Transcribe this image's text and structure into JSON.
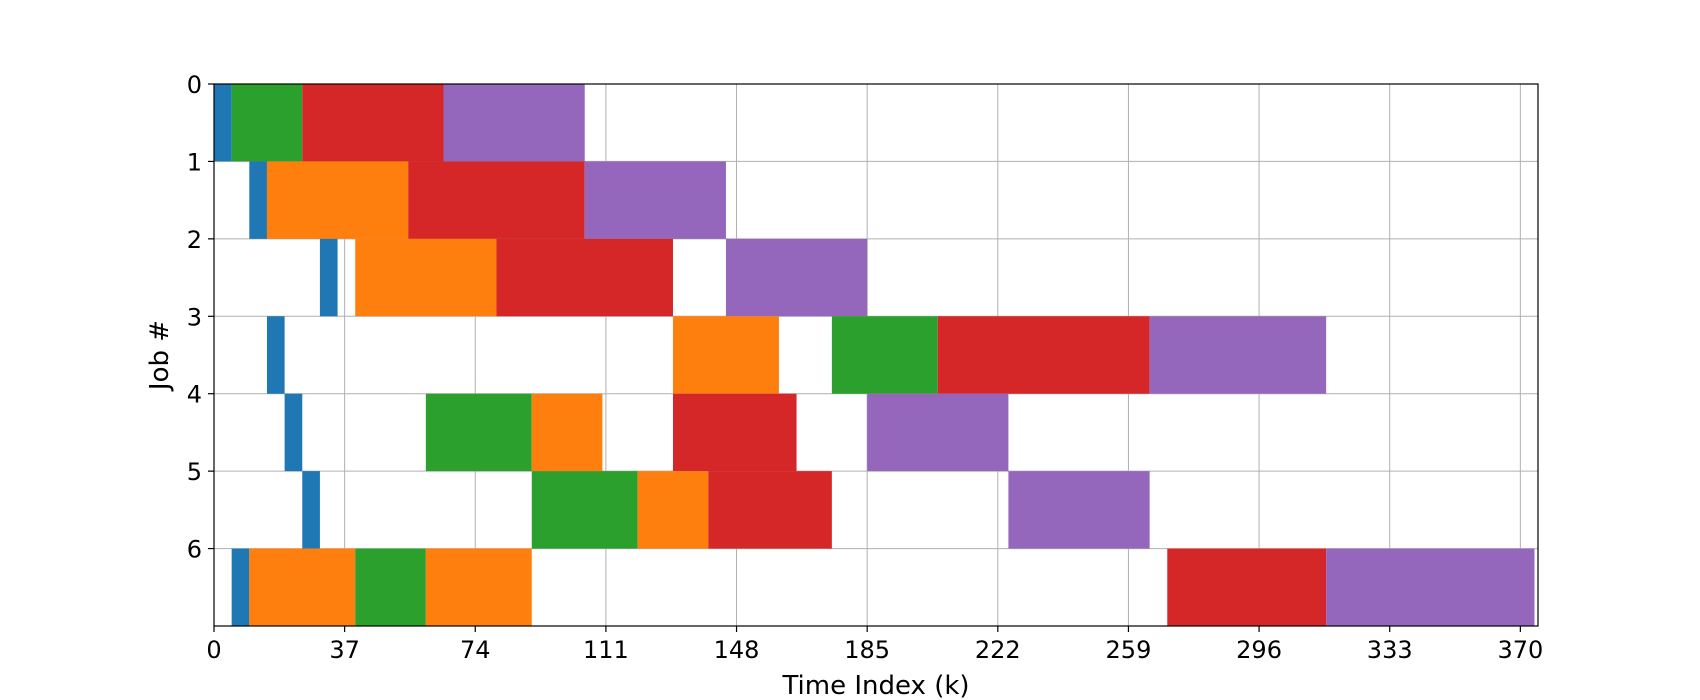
{
  "chart_data": {
    "type": "gantt",
    "title": "",
    "xlabel": "Time Index (k)",
    "ylabel": "Job #",
    "xlim": [
      0,
      375
    ],
    "ylim": [
      0,
      7
    ],
    "y_inverted": true,
    "grid": true,
    "legend": "none",
    "x_ticks": [
      "0",
      "37",
      "74",
      "111",
      "148",
      "185",
      "222",
      "259",
      "296",
      "333",
      "370"
    ],
    "x_tick_values": [
      0,
      37,
      74,
      111,
      148,
      185,
      222,
      259,
      296,
      333,
      370
    ],
    "y_ticks": [
      "0",
      "1",
      "2",
      "3",
      "4",
      "5",
      "6"
    ],
    "y_tick_values": [
      0,
      1,
      2,
      3,
      4,
      5,
      6
    ],
    "colors": {
      "blue": "#1f77b4",
      "orange": "#ff7f0e",
      "green": "#2ca02c",
      "red": "#d62728",
      "purple": "#9467bd"
    },
    "jobs": [
      {
        "job": 0,
        "tasks": [
          {
            "start": 0,
            "end": 5,
            "color": "blue"
          },
          {
            "start": 5,
            "end": 25,
            "color": "green"
          },
          {
            "start": 25,
            "end": 65,
            "color": "red"
          },
          {
            "start": 65,
            "end": 105,
            "color": "purple"
          }
        ]
      },
      {
        "job": 1,
        "tasks": [
          {
            "start": 10,
            "end": 15,
            "color": "blue"
          },
          {
            "start": 15,
            "end": 55,
            "color": "orange"
          },
          {
            "start": 55,
            "end": 105,
            "color": "red"
          },
          {
            "start": 105,
            "end": 145,
            "color": "purple"
          }
        ]
      },
      {
        "job": 2,
        "tasks": [
          {
            "start": 30,
            "end": 35,
            "color": "blue"
          },
          {
            "start": 40,
            "end": 80,
            "color": "orange"
          },
          {
            "start": 80,
            "end": 130,
            "color": "red"
          },
          {
            "start": 145,
            "end": 185,
            "color": "purple"
          }
        ]
      },
      {
        "job": 3,
        "tasks": [
          {
            "start": 15,
            "end": 20,
            "color": "blue"
          },
          {
            "start": 130,
            "end": 160,
            "color": "orange"
          },
          {
            "start": 175,
            "end": 205,
            "color": "green"
          },
          {
            "start": 205,
            "end": 265,
            "color": "red"
          },
          {
            "start": 265,
            "end": 315,
            "color": "purple"
          }
        ]
      },
      {
        "job": 4,
        "tasks": [
          {
            "start": 20,
            "end": 25,
            "color": "blue"
          },
          {
            "start": 60,
            "end": 90,
            "color": "green"
          },
          {
            "start": 90,
            "end": 110,
            "color": "orange"
          },
          {
            "start": 130,
            "end": 165,
            "color": "red"
          },
          {
            "start": 185,
            "end": 225,
            "color": "purple"
          }
        ]
      },
      {
        "job": 5,
        "tasks": [
          {
            "start": 25,
            "end": 30,
            "color": "blue"
          },
          {
            "start": 90,
            "end": 120,
            "color": "green"
          },
          {
            "start": 120,
            "end": 140,
            "color": "orange"
          },
          {
            "start": 140,
            "end": 175,
            "color": "red"
          },
          {
            "start": 225,
            "end": 265,
            "color": "purple"
          }
        ]
      },
      {
        "job": 6,
        "tasks": [
          {
            "start": 5,
            "end": 10,
            "color": "blue"
          },
          {
            "start": 10,
            "end": 40,
            "color": "orange"
          },
          {
            "start": 40,
            "end": 60,
            "color": "green"
          },
          {
            "start": 60,
            "end": 90,
            "color": "orange"
          },
          {
            "start": 270,
            "end": 315,
            "color": "red"
          },
          {
            "start": 315,
            "end": 374,
            "color": "purple"
          }
        ]
      }
    ]
  }
}
